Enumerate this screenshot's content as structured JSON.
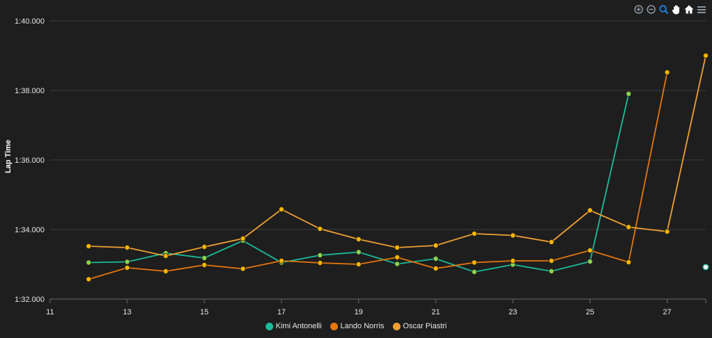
{
  "toolbar": {
    "icons": [
      "zoom-in-icon",
      "zoom-out-icon",
      "zoom-selection-icon",
      "pan-hand-icon",
      "home-reset-icon",
      "menu-icon"
    ]
  },
  "chart_data": {
    "type": "line",
    "title": "",
    "xlabel": "",
    "ylabel": "Lap Time",
    "xlim": [
      11,
      28
    ],
    "ylim": [
      92,
      100
    ],
    "x_ticks": [
      11,
      13,
      15,
      17,
      19,
      21,
      23,
      25,
      27
    ],
    "y_ticks": [
      92,
      94,
      96,
      98,
      100
    ],
    "y_tick_labels": [
      "1:32.000",
      "1:34.000",
      "1:36.000",
      "1:38.000",
      "1:40.000"
    ],
    "grid": true,
    "legend_position": "bottom-center",
    "series": [
      {
        "name": "Kimi Antonelli",
        "color": "#1abc9c",
        "marker_color": "#8bd44e",
        "x": [
          12,
          13,
          14,
          15,
          16,
          17,
          18,
          19,
          20,
          21,
          22,
          23,
          24,
          25,
          26
        ],
        "y": [
          93.05,
          93.07,
          93.32,
          93.18,
          93.68,
          93.05,
          93.26,
          93.35,
          93.01,
          93.16,
          92.78,
          92.99,
          92.8,
          93.08,
          97.9
        ],
        "extra_points": [
          {
            "x": 28,
            "y": 92.92
          }
        ]
      },
      {
        "name": "Lando Norris",
        "color": "#e8760c",
        "marker_color": "#f4b400",
        "x": [
          12,
          13,
          14,
          15,
          16,
          17,
          18,
          19,
          20,
          21,
          22,
          23,
          24,
          25,
          26,
          27
        ],
        "y": [
          92.57,
          92.9,
          92.8,
          92.98,
          92.87,
          93.1,
          93.04,
          93.0,
          93.2,
          92.88,
          93.05,
          93.1,
          93.1,
          93.4,
          93.06,
          98.52
        ]
      },
      {
        "name": "Oscar Piastri",
        "color": "#f0a030",
        "marker_color": "#f4b400",
        "x": [
          12,
          13,
          14,
          15,
          16,
          17,
          18,
          19,
          20,
          21,
          22,
          23,
          24,
          25,
          26,
          27,
          28
        ],
        "y": [
          93.52,
          93.48,
          93.24,
          93.5,
          93.74,
          94.58,
          94.02,
          93.72,
          93.48,
          93.54,
          93.88,
          93.83,
          93.64,
          94.55,
          94.07,
          93.94,
          99.0
        ]
      }
    ]
  }
}
